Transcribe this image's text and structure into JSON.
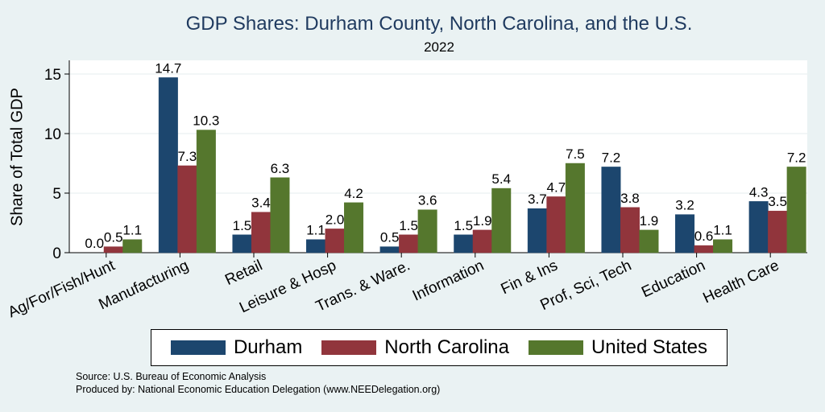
{
  "chart_data": {
    "type": "bar",
    "title": "GDP Shares: Durham County, North Carolina, and the U.S.",
    "subtitle": "2022",
    "xlabel": "",
    "ylabel": "Share of Total GDP",
    "ylim": [
      0,
      16
    ],
    "yticks": [
      0,
      5,
      10,
      15
    ],
    "grid": true,
    "legend_position": "bottom",
    "categories": [
      "Ag/For/Fish/Hunt",
      "Manufacturing",
      "Retail",
      "Leisure & Hosp",
      "Trans. & Ware.",
      "Information",
      "Fin & Ins",
      "Prof, Sci, Tech",
      "Education",
      "Health Care"
    ],
    "series": [
      {
        "name": "Durham",
        "color": "#1c466e",
        "values": [
          0.0,
          14.7,
          1.5,
          1.1,
          0.5,
          1.5,
          3.7,
          7.2,
          3.2,
          4.3
        ]
      },
      {
        "name": "North Carolina",
        "color": "#91353c",
        "values": [
          0.5,
          7.3,
          3.4,
          2.0,
          1.5,
          1.9,
          4.7,
          3.8,
          0.6,
          3.5
        ]
      },
      {
        "name": "United States",
        "color": "#55772d",
        "values": [
          1.1,
          10.3,
          6.3,
          4.2,
          3.6,
          5.4,
          7.5,
          1.9,
          1.1,
          7.2
        ]
      }
    ],
    "source_lines": [
      "Source: U.S. Bureau of Economic Analysis",
      "Produced by: National Economic Education Delegation (www.NEEDelegation.org)"
    ]
  }
}
